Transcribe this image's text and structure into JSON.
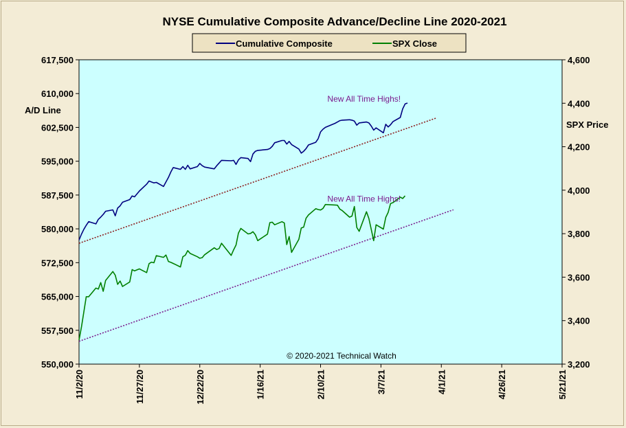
{
  "chart_data": {
    "type": "line",
    "title": "NYSE Cumulative  Composite Advance/Decline Line 2020-2021",
    "left_axis": {
      "label": "A/D Line",
      "ylim": [
        550000,
        617500
      ],
      "ticks": [
        "617,500",
        "610,000",
        "602,500",
        "595,000",
        "587,500",
        "580,000",
        "572,500",
        "565,000",
        "557,500",
        "550,000"
      ]
    },
    "right_axis": {
      "label": "SPX Price",
      "ylim": [
        3200,
        4600
      ],
      "ticks": [
        "4,600",
        "4,400",
        "4,200",
        "4,000",
        "3,800",
        "3,600",
        "3,400",
        "3,200"
      ]
    },
    "x_axis": {
      "range": [
        "2020-11-02",
        "2021-05-21"
      ],
      "ticks": [
        {
          "label": "11/2/20",
          "date": "2020-11-02"
        },
        {
          "label": "11/27/20",
          "date": "2020-11-27"
        },
        {
          "label": "12/22/20",
          "date": "2020-12-22"
        },
        {
          "label": "1/16/21",
          "date": "2021-01-16"
        },
        {
          "label": "2/10/21",
          "date": "2021-02-10"
        },
        {
          "label": "3/7/21",
          "date": "2021-03-07"
        },
        {
          "label": "4/1/21",
          "date": "2021-04-01"
        },
        {
          "label": "4/26/21",
          "date": "2021-04-26"
        },
        {
          "label": "5/21/21",
          "date": "2021-05-21"
        }
      ]
    },
    "legend": {
      "placement": "top-center",
      "items": [
        {
          "label": "Cumulative Composite",
          "color": "#00007f"
        },
        {
          "label": "SPX Close",
          "color": "#007f00"
        }
      ]
    },
    "series": [
      {
        "name": "Cumulative Composite",
        "axis": "left",
        "color": "#00007f",
        "points": [
          [
            "2020-11-02",
            577500
          ],
          [
            "2020-11-03",
            578800
          ],
          [
            "2020-11-04",
            579900
          ],
          [
            "2020-11-05",
            580800
          ],
          [
            "2020-11-06",
            581600
          ],
          [
            "2020-11-09",
            581100
          ],
          [
            "2020-11-10",
            582100
          ],
          [
            "2020-11-11",
            582600
          ],
          [
            "2020-11-12",
            583200
          ],
          [
            "2020-11-13",
            583900
          ],
          [
            "2020-11-16",
            584200
          ],
          [
            "2020-11-17",
            582900
          ],
          [
            "2020-11-18",
            584600
          ],
          [
            "2020-11-19",
            585100
          ],
          [
            "2020-11-20",
            585900
          ],
          [
            "2020-11-23",
            586500
          ],
          [
            "2020-11-24",
            587300
          ],
          [
            "2020-11-25",
            587100
          ],
          [
            "2020-11-27",
            588400
          ],
          [
            "2020-11-30",
            589900
          ],
          [
            "2020-12-01",
            590600
          ],
          [
            "2020-12-02",
            590400
          ],
          [
            "2020-12-03",
            590200
          ],
          [
            "2020-12-04",
            590300
          ],
          [
            "2020-12-07",
            589400
          ],
          [
            "2020-12-08",
            590400
          ],
          [
            "2020-12-09",
            591400
          ],
          [
            "2020-12-10",
            592600
          ],
          [
            "2020-12-11",
            593600
          ],
          [
            "2020-12-14",
            593200
          ],
          [
            "2020-12-15",
            593800
          ],
          [
            "2020-12-16",
            593200
          ],
          [
            "2020-12-17",
            594100
          ],
          [
            "2020-12-18",
            593300
          ],
          [
            "2020-12-21",
            593800
          ],
          [
            "2020-12-22",
            594500
          ],
          [
            "2020-12-23",
            594000
          ],
          [
            "2020-12-24",
            593700
          ],
          [
            "2020-12-28",
            593300
          ],
          [
            "2020-12-29",
            594000
          ],
          [
            "2020-12-30",
            594600
          ],
          [
            "2020-12-31",
            595200
          ],
          [
            "2021-01-04",
            595100
          ],
          [
            "2021-01-05",
            595200
          ],
          [
            "2021-01-06",
            594300
          ],
          [
            "2021-01-07",
            595300
          ],
          [
            "2021-01-08",
            595800
          ],
          [
            "2021-01-11",
            595600
          ],
          [
            "2021-01-12",
            594900
          ],
          [
            "2021-01-13",
            596600
          ],
          [
            "2021-01-14",
            597200
          ],
          [
            "2021-01-15",
            597400
          ],
          [
            "2021-01-19",
            597600
          ],
          [
            "2021-01-20",
            597800
          ],
          [
            "2021-01-21",
            598300
          ],
          [
            "2021-01-22",
            599100
          ],
          [
            "2021-01-25",
            599600
          ],
          [
            "2021-01-26",
            599600
          ],
          [
            "2021-01-27",
            598800
          ],
          [
            "2021-01-28",
            599400
          ],
          [
            "2021-01-29",
            598700
          ],
          [
            "2021-02-01",
            597700
          ],
          [
            "2021-02-02",
            596800
          ],
          [
            "2021-02-03",
            597200
          ],
          [
            "2021-02-04",
            597800
          ],
          [
            "2021-02-05",
            598600
          ],
          [
            "2021-02-08",
            599200
          ],
          [
            "2021-02-09",
            600000
          ],
          [
            "2021-02-10",
            601500
          ],
          [
            "2021-02-11",
            602100
          ],
          [
            "2021-02-12",
            602500
          ],
          [
            "2021-02-16",
            603400
          ],
          [
            "2021-02-17",
            603700
          ],
          [
            "2021-02-18",
            604000
          ],
          [
            "2021-02-19",
            604100
          ],
          [
            "2021-02-22",
            604200
          ],
          [
            "2021-02-23",
            604100
          ],
          [
            "2021-02-24",
            603900
          ],
          [
            "2021-02-25",
            603000
          ],
          [
            "2021-02-26",
            603500
          ],
          [
            "2021-03-01",
            603700
          ],
          [
            "2021-03-02",
            603500
          ],
          [
            "2021-03-03",
            602800
          ],
          [
            "2021-03-04",
            601900
          ],
          [
            "2021-03-05",
            602400
          ],
          [
            "2021-03-08",
            601300
          ],
          [
            "2021-03-09",
            603200
          ],
          [
            "2021-03-10",
            602600
          ],
          [
            "2021-03-11",
            603100
          ],
          [
            "2021-03-12",
            603800
          ],
          [
            "2021-03-15",
            604700
          ],
          [
            "2021-03-16",
            606600
          ],
          [
            "2021-03-17",
            607700
          ],
          [
            "2021-03-18",
            607900
          ]
        ]
      },
      {
        "name": "SPX Close",
        "axis": "right",
        "color": "#007f00",
        "points": [
          [
            "2020-11-02",
            3310
          ],
          [
            "2020-11-03",
            3370
          ],
          [
            "2020-11-04",
            3440
          ],
          [
            "2020-11-05",
            3510
          ],
          [
            "2020-11-06",
            3510
          ],
          [
            "2020-11-09",
            3550
          ],
          [
            "2020-11-10",
            3545
          ],
          [
            "2020-11-11",
            3575
          ],
          [
            "2020-11-12",
            3535
          ],
          [
            "2020-11-13",
            3585
          ],
          [
            "2020-11-16",
            3626
          ],
          [
            "2020-11-17",
            3609
          ],
          [
            "2020-11-18",
            3567
          ],
          [
            "2020-11-19",
            3582
          ],
          [
            "2020-11-20",
            3557
          ],
          [
            "2020-11-23",
            3578
          ],
          [
            "2020-11-24",
            3635
          ],
          [
            "2020-11-25",
            3629
          ],
          [
            "2020-11-27",
            3638
          ],
          [
            "2020-11-30",
            3621
          ],
          [
            "2020-12-01",
            3662
          ],
          [
            "2020-12-02",
            3669
          ],
          [
            "2020-12-03",
            3666
          ],
          [
            "2020-12-04",
            3699
          ],
          [
            "2020-12-07",
            3691
          ],
          [
            "2020-12-08",
            3702
          ],
          [
            "2020-12-09",
            3672
          ],
          [
            "2020-12-10",
            3668
          ],
          [
            "2020-12-11",
            3663
          ],
          [
            "2020-12-14",
            3647
          ],
          [
            "2020-12-15",
            3694
          ],
          [
            "2020-12-16",
            3701
          ],
          [
            "2020-12-17",
            3722
          ],
          [
            "2020-12-18",
            3709
          ],
          [
            "2020-12-21",
            3694
          ],
          [
            "2020-12-22",
            3687
          ],
          [
            "2020-12-23",
            3690
          ],
          [
            "2020-12-24",
            3703
          ],
          [
            "2020-12-28",
            3735
          ],
          [
            "2020-12-29",
            3727
          ],
          [
            "2020-12-30",
            3732
          ],
          [
            "2020-12-31",
            3756
          ],
          [
            "2021-01-04",
            3700
          ],
          [
            "2021-01-05",
            3726
          ],
          [
            "2021-01-06",
            3748
          ],
          [
            "2021-01-07",
            3803
          ],
          [
            "2021-01-08",
            3824
          ],
          [
            "2021-01-11",
            3799
          ],
          [
            "2021-01-12",
            3801
          ],
          [
            "2021-01-13",
            3809
          ],
          [
            "2021-01-14",
            3795
          ],
          [
            "2021-01-15",
            3768
          ],
          [
            "2021-01-19",
            3798
          ],
          [
            "2021-01-20",
            3851
          ],
          [
            "2021-01-21",
            3853
          ],
          [
            "2021-01-22",
            3841
          ],
          [
            "2021-01-25",
            3855
          ],
          [
            "2021-01-26",
            3849
          ],
          [
            "2021-01-27",
            3750
          ],
          [
            "2021-01-28",
            3787
          ],
          [
            "2021-01-29",
            3714
          ],
          [
            "2021-02-01",
            3774
          ],
          [
            "2021-02-02",
            3826
          ],
          [
            "2021-02-03",
            3830
          ],
          [
            "2021-02-04",
            3871
          ],
          [
            "2021-02-05",
            3886
          ],
          [
            "2021-02-08",
            3915
          ],
          [
            "2021-02-09",
            3911
          ],
          [
            "2021-02-10",
            3909
          ],
          [
            "2021-02-11",
            3916
          ],
          [
            "2021-02-12",
            3934
          ],
          [
            "2021-02-16",
            3932
          ],
          [
            "2021-02-17",
            3931
          ],
          [
            "2021-02-18",
            3913
          ],
          [
            "2021-02-19",
            3906
          ],
          [
            "2021-02-22",
            3876
          ],
          [
            "2021-02-23",
            3881
          ],
          [
            "2021-02-24",
            3925
          ],
          [
            "2021-02-25",
            3829
          ],
          [
            "2021-02-26",
            3811
          ],
          [
            "2021-03-01",
            3901
          ],
          [
            "2021-03-02",
            3870
          ],
          [
            "2021-03-03",
            3819
          ],
          [
            "2021-03-04",
            3768
          ],
          [
            "2021-03-05",
            3841
          ],
          [
            "2021-03-08",
            3821
          ],
          [
            "2021-03-09",
            3875
          ],
          [
            "2021-03-10",
            3898
          ],
          [
            "2021-03-11",
            3939
          ],
          [
            "2021-03-12",
            3943
          ],
          [
            "2021-03-15",
            3968
          ],
          [
            "2021-03-16",
            3962
          ],
          [
            "2021-03-17",
            3974
          ]
        ]
      }
    ],
    "trendlines": [
      {
        "axis": "left",
        "from": [
          "2020-11-02",
          576800
        ],
        "to": [
          "2021-03-30",
          604600
        ],
        "color": "#8b1a1a",
        "style": "dotted"
      },
      {
        "axis": "right",
        "from": [
          "2020-11-02",
          3305
        ],
        "to": [
          "2021-04-06",
          3910
        ],
        "color": "#7a1a8c",
        "style": "dotted"
      }
    ],
    "annotations": [
      {
        "text": "New All Time Highs!",
        "axis": "left",
        "date": "2021-02-28",
        "y": 608200
      },
      {
        "text": "New All Time Highs!",
        "axis": "right",
        "date": "2021-02-28",
        "y": 3947
      }
    ],
    "grid": false,
    "copyright": "© 2020-2021  Technical Watch"
  }
}
